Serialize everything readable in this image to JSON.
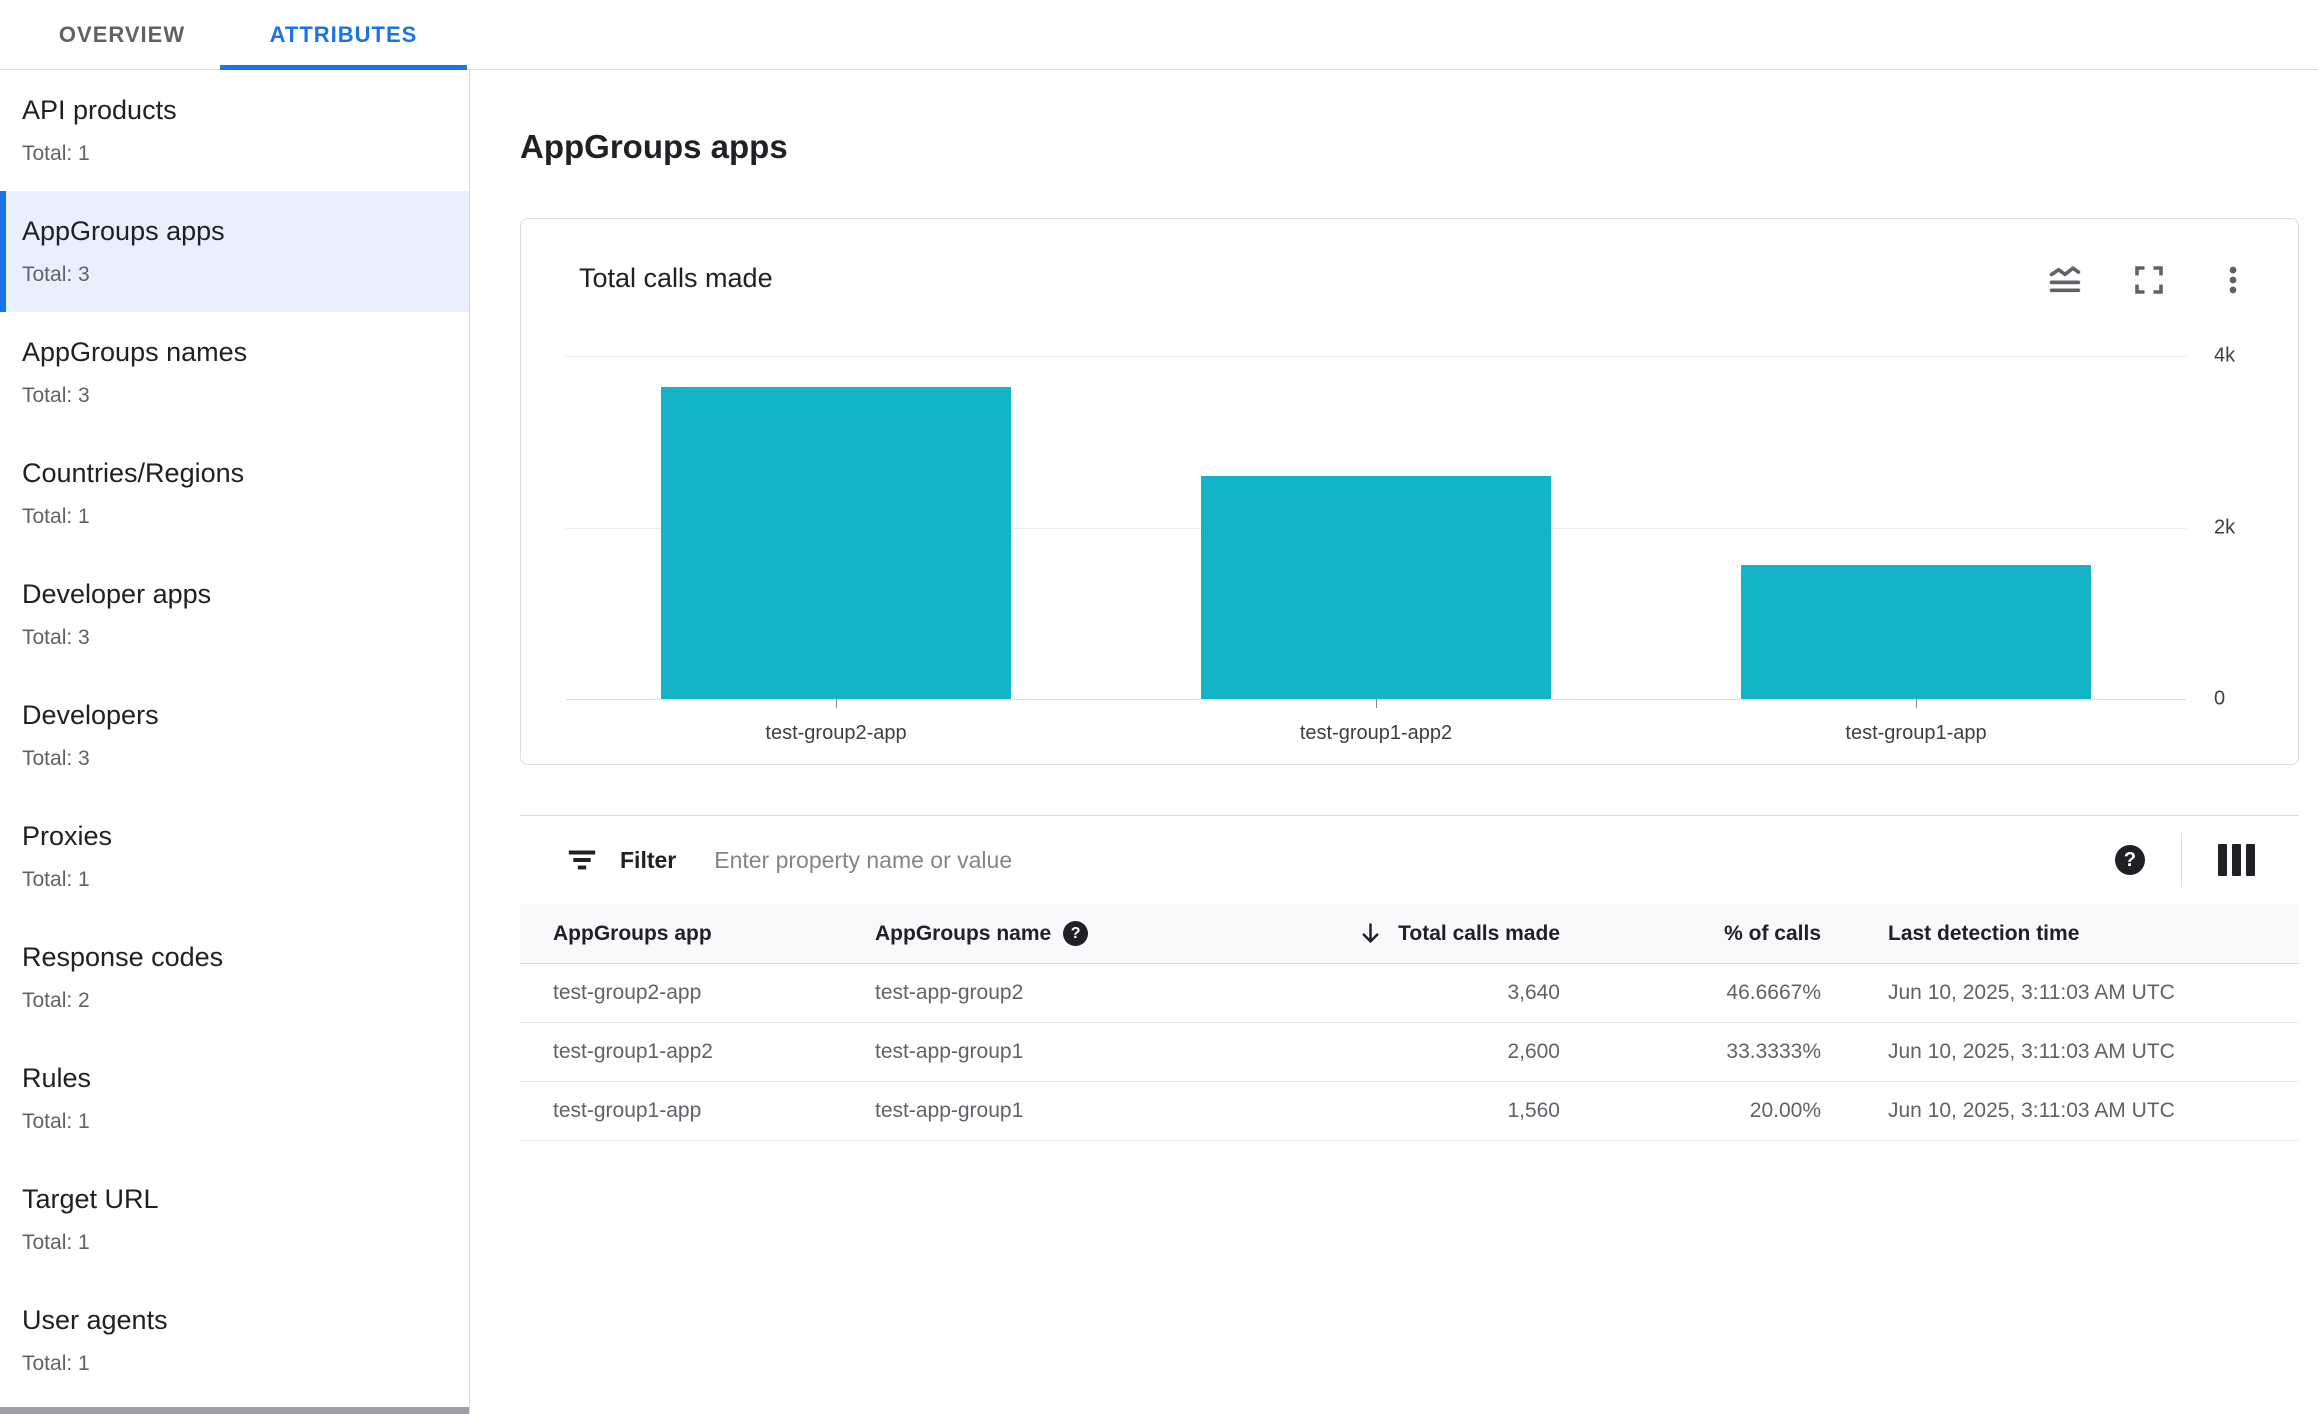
{
  "colors": {
    "accent": "#1a73e8",
    "bar": "#14b4c8",
    "selected_bg": "#e8f0fe"
  },
  "tabs": {
    "overview": "OVERVIEW",
    "attributes": "ATTRIBUTES"
  },
  "sidebar": {
    "items": [
      {
        "label": "API products",
        "total": "Total: 1"
      },
      {
        "label": "AppGroups apps",
        "total": "Total: 3"
      },
      {
        "label": "AppGroups names",
        "total": "Total: 3"
      },
      {
        "label": "Countries/Regions",
        "total": "Total: 1"
      },
      {
        "label": "Developer apps",
        "total": "Total: 3"
      },
      {
        "label": "Developers",
        "total": "Total: 3"
      },
      {
        "label": "Proxies",
        "total": "Total: 1"
      },
      {
        "label": "Response codes",
        "total": "Total: 2"
      },
      {
        "label": "Rules",
        "total": "Total: 1"
      },
      {
        "label": "Target URL",
        "total": "Total: 1"
      },
      {
        "label": "User agents",
        "total": "Total: 1"
      }
    ],
    "selected": "AppGroups apps"
  },
  "main": {
    "page_title": "AppGroups apps"
  },
  "chart_card": {
    "title": "Total calls made",
    "icons": [
      "chart-type-icon",
      "fullscreen-icon",
      "more-vertical-icon"
    ]
  },
  "chart_data": {
    "type": "bar",
    "title": "Total calls made",
    "categories": [
      "test-group2-app",
      "test-group1-app2",
      "test-group1-app"
    ],
    "values": [
      3640,
      2600,
      1560
    ],
    "ylim": [
      0,
      4000
    ],
    "yticks": [
      {
        "value": 4000,
        "label": "4k"
      },
      {
        "value": 2000,
        "label": "2k"
      },
      {
        "value": 0,
        "label": "0"
      }
    ],
    "bar_color": "#14b4c8",
    "grid": "horizontal",
    "axis_side": "right",
    "legend": "none"
  },
  "filter": {
    "label": "Filter",
    "placeholder": "Enter property name or value"
  },
  "table": {
    "columns": [
      "AppGroups app",
      "AppGroups name",
      "Total calls made",
      "% of calls",
      "Last detection time"
    ],
    "sorted_column": "Total calls made",
    "sort_direction": "descending",
    "rows": [
      {
        "app": "test-group2-app",
        "name": "test-app-group2",
        "calls": "3,640",
        "pct": "46.6667%",
        "time": "Jun 10, 2025, 3:11:03 AM UTC"
      },
      {
        "app": "test-group1-app2",
        "name": "test-app-group1",
        "calls": "2,600",
        "pct": "33.3333%",
        "time": "Jun 10, 2025, 3:11:03 AM UTC"
      },
      {
        "app": "test-group1-app",
        "name": "test-app-group1",
        "calls": "1,560",
        "pct": "20.00%",
        "time": "Jun 10, 2025, 3:11:03 AM UTC"
      }
    ]
  }
}
